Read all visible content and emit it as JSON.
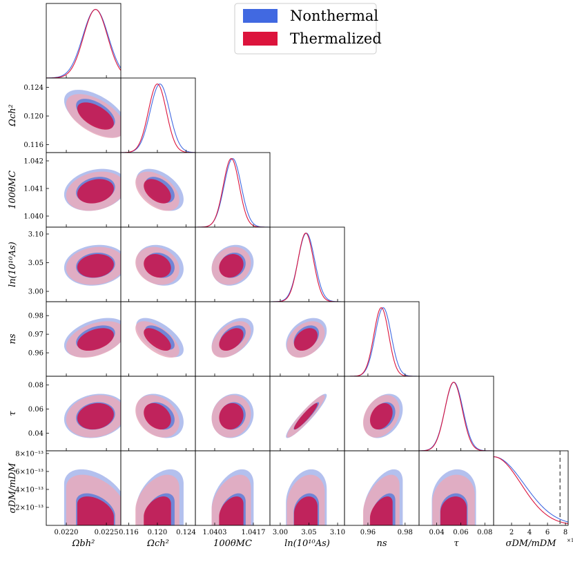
{
  "chart_data": {
    "type": "corner",
    "series": [
      {
        "name": "Nonthermal",
        "color": "#4169E1",
        "inner_color": "#7085d6",
        "outer_color": "#b3c0ee"
      },
      {
        "name": "Thermalized",
        "color": "#DC143C",
        "inner_color": "#c41d55",
        "outer_color": "#e8a9bb"
      }
    ],
    "legend": {
      "position": "top-center"
    },
    "parameters": [
      {
        "label": "Ωbh²",
        "range": [
          0.02175,
          0.02268
        ],
        "ticks": [
          0.022,
          0.0225
        ],
        "tick_labels": [
          "0.0220",
          "0.0225"
        ]
      },
      {
        "label": "Ωch²",
        "range": [
          0.1149,
          0.1253
        ],
        "ticks": [
          0.116,
          0.12,
          0.124
        ],
        "tick_labels": [
          "0.116",
          "0.120",
          "0.124"
        ]
      },
      {
        "label": "100θMC",
        "range": [
          1.0396,
          1.0423
        ],
        "ticks": [
          1.04,
          1.041,
          1.042
        ],
        "tick_labels": [
          "1.040",
          "1.041",
          "1.042"
        ],
        "x_ticks": [
          1.0403,
          1.0417
        ],
        "x_tick_labels": [
          "1.0403",
          "1.0417"
        ]
      },
      {
        "label": "ln(10¹⁰As)",
        "range": [
          2.982,
          3.112
        ],
        "ticks": [
          3.0,
          3.05,
          3.1
        ],
        "tick_labels": [
          "3.00",
          "3.05",
          "3.10"
        ]
      },
      {
        "label": "ns",
        "range": [
          0.9474,
          0.9875
        ],
        "ticks": [
          0.96,
          0.97,
          0.98
        ],
        "tick_labels": [
          "0.96",
          "0.97",
          "0.98"
        ],
        "x_ticks": [
          0.96,
          0.98
        ],
        "x_tick_labels": [
          "0.96",
          "0.98"
        ]
      },
      {
        "label": "τ",
        "range": [
          0.0253,
          0.0873
        ],
        "ticks": [
          0.04,
          0.06,
          0.08
        ],
        "tick_labels": [
          "0.04",
          "0.06",
          "0.08"
        ]
      },
      {
        "label": "σDM/mDM",
        "range": [
          0.0,
          8.3e-13
        ],
        "ticks": [
          2e-13,
          4e-13,
          6e-13,
          8e-13
        ],
        "tick_labels": [
          "2×10⁻¹³",
          "4×10⁻¹³",
          "6×10⁻¹³",
          "8×10⁻¹³"
        ],
        "x_ticks": [
          2e-13,
          4e-13,
          6e-13,
          8e-13
        ],
        "x_tick_labels": [
          "2",
          "4",
          "6",
          "8"
        ],
        "x_multiplier": "×10⁻¹³"
      }
    ],
    "posteriors": {
      "Nonthermal": {
        "mean": [
          0.022365,
          0.12035,
          1.04095,
          3.0455,
          0.9682,
          0.0543
        ],
        "sigma": [
          0.00016,
          0.00135,
          0.00031,
          0.0145,
          0.0043,
          0.0075
        ],
        "sigma_dm": {
          "scale": 3.1e-13,
          "upper_limit_95": 7.4e-13
        }
      },
      "Thermalized": {
        "mean": [
          0.022365,
          0.12,
          1.0409,
          3.0445,
          0.9672,
          0.054
        ],
        "sigma": [
          0.00015,
          0.00125,
          0.00029,
          0.0135,
          0.004,
          0.0072
        ],
        "sigma_dm": {
          "scale": 2.8e-13
        }
      },
      "correlations": {
        "0-1": -0.55,
        "0-2": 0.22,
        "0-3": 0.12,
        "0-4": 0.4,
        "0-5": 0.15,
        "1-2": -0.45,
        "1-3": -0.18,
        "1-4": -0.62,
        "1-5": -0.28,
        "2-3": 0.15,
        "2-4": 0.45,
        "2-5": 0.1,
        "3-4": 0.35,
        "3-5": 0.93,
        "4-5": 0.3,
        "0-6": -0.45,
        "1-6": 0.45,
        "2-6": 0.45,
        "3-6": 0.25,
        "4-6": 0.55,
        "5-6": 0.15
      }
    },
    "upper_limit_marker": {
      "parameter": "σDM/mDM",
      "value": 7.4e-13,
      "style": "dashed",
      "color": "#666666"
    }
  }
}
